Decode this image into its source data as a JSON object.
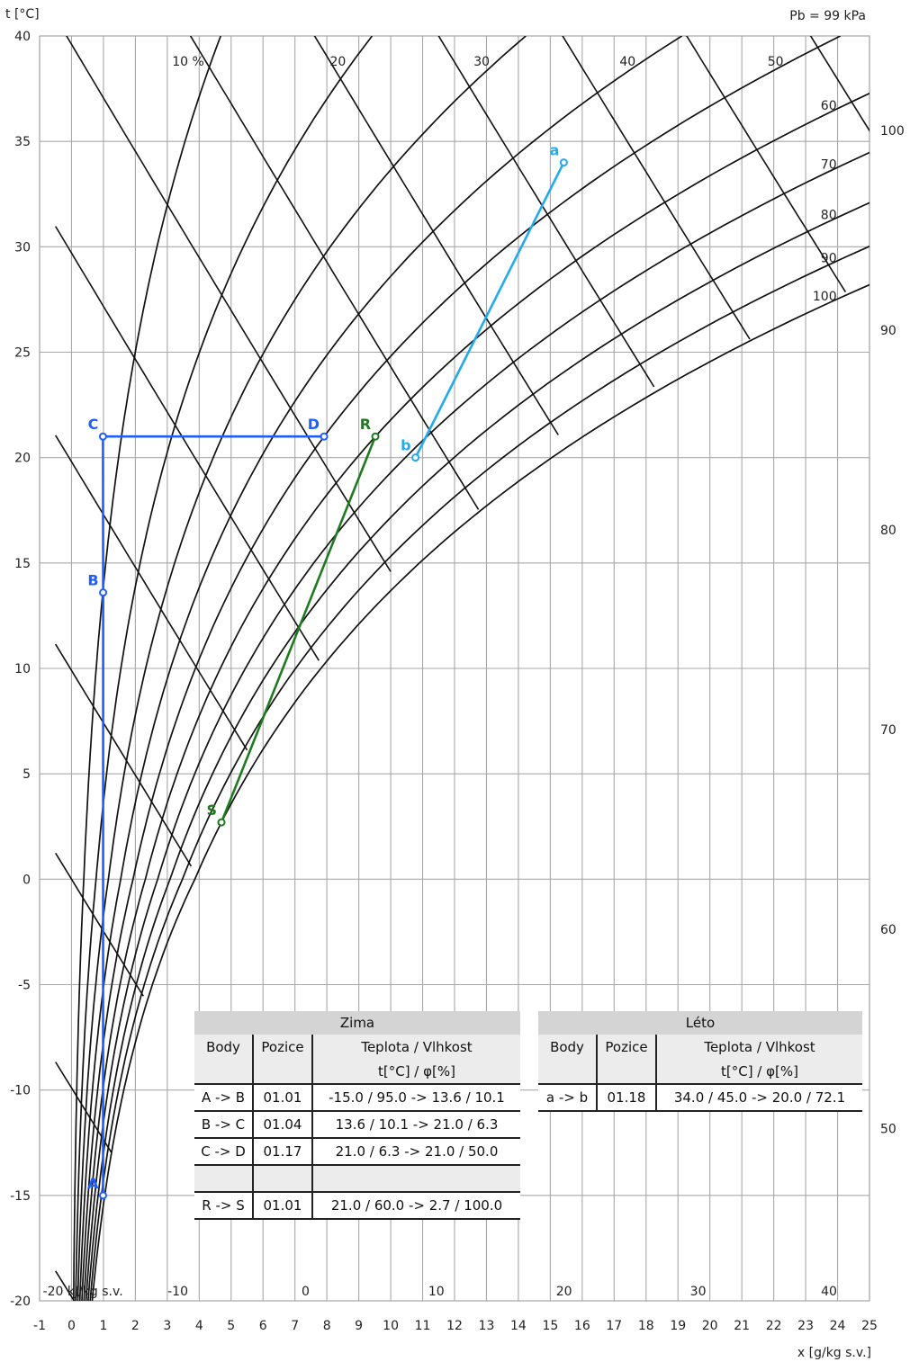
{
  "chart_data": {
    "type": "psychrometric",
    "title": "",
    "pressure_label": "Pb = 99 kPa",
    "ylabel": "t [°C]",
    "xlabel": "x [g/kg s.v.]",
    "xlim": [
      -1,
      25
    ],
    "ylim": [
      -20,
      40
    ],
    "pressure_kPa": 99,
    "x_ticks": [
      "-1",
      "0",
      "1",
      "2",
      "3",
      "4",
      "5",
      "6",
      "7",
      "8",
      "9",
      "10",
      "11",
      "12",
      "13",
      "14",
      "15",
      "16",
      "17",
      "18",
      "19",
      "20",
      "21",
      "22",
      "23",
      "24",
      "25"
    ],
    "y_ticks": [
      "-20",
      "-15",
      "-10",
      "-5",
      "0",
      "5",
      "10",
      "15",
      "20",
      "25",
      "30",
      "35",
      "40"
    ],
    "rh_curves": [
      10,
      20,
      30,
      40,
      50,
      60,
      70,
      80,
      90,
      100
    ],
    "rh_labels": [
      "10 %",
      "20",
      "30",
      "40",
      "50",
      "60",
      "70",
      "80",
      "90",
      "100"
    ],
    "enthalpy_bottom_labels": [
      "-20 kJ/kg s.v.",
      "-10",
      "0",
      "10",
      "20",
      "30",
      "40"
    ],
    "enthalpy_right_labels": [
      "100",
      "90",
      "80",
      "70",
      "60",
      "50"
    ],
    "series": [
      {
        "name": "Zima",
        "color": "#1e5eff",
        "points": [
          {
            "label": "A",
            "t": -15.0,
            "rh": 95.0
          },
          {
            "label": "B",
            "t": 13.6,
            "rh": 10.1
          },
          {
            "label": "C",
            "t": 21.0,
            "rh": 6.3
          },
          {
            "label": "D",
            "t": 21.0,
            "rh": 50.0
          }
        ]
      },
      {
        "name": "Zima",
        "color": "#1f7a1f",
        "points": [
          {
            "label": "R",
            "t": 21.0,
            "rh": 60.0
          },
          {
            "label": "S",
            "t": 2.7,
            "rh": 100.0
          }
        ]
      },
      {
        "name": "Léto",
        "color": "#22aaee",
        "points": [
          {
            "label": "a",
            "t": 34.0,
            "rh": 45.0
          },
          {
            "label": "b",
            "t": 20.0,
            "rh": 72.1
          }
        ]
      }
    ]
  },
  "tables": {
    "zima": {
      "title": "Zima",
      "col_body": "Body",
      "col_pozice": "Pozice",
      "col_tv": "Teplota / Vlhkost",
      "col_tv_units": "t[°C] / φ[%]",
      "rows": [
        {
          "body": "A -> B",
          "pozice": "01.01",
          "value": "-15.0 / 95.0 -> 13.6 / 10.1"
        },
        {
          "body": "B -> C",
          "pozice": "01.04",
          "value": "13.6 / 10.1 -> 21.0 / 6.3"
        },
        {
          "body": "C -> D",
          "pozice": "01.17",
          "value": "21.0 / 6.3 -> 21.0 / 50.0"
        },
        {
          "body": "R -> S",
          "pozice": "01.01",
          "value": "21.0 / 60.0 -> 2.7 / 100.0"
        }
      ]
    },
    "leto": {
      "title": "Léto",
      "col_body": "Body",
      "col_pozice": "Pozice",
      "col_tv": "Teplota / Vlhkost",
      "col_tv_units": "t[°C] / φ[%]",
      "rows": [
        {
          "body": "a -> b",
          "pozice": "01.18",
          "value": "34.0 / 45.0 -> 20.0 / 72.1"
        }
      ]
    }
  }
}
